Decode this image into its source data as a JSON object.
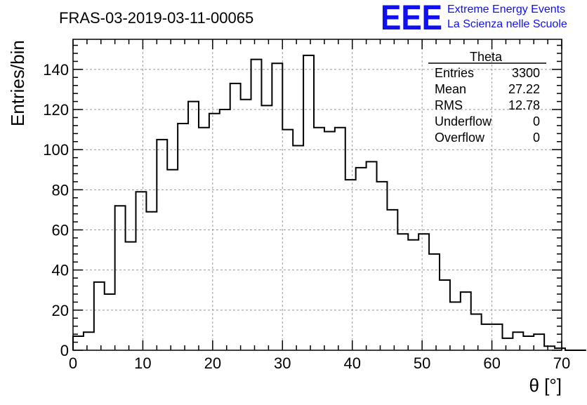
{
  "chart_data": {
    "type": "bar",
    "title": "FRAS-03-2019-03-11-00065",
    "xlabel": "θ [°]",
    "ylabel": "Entries/bin",
    "xlim": [
      0,
      70
    ],
    "ylim": [
      0,
      155
    ],
    "bin_width": 1.5,
    "x_ticks": [
      0,
      10,
      20,
      30,
      40,
      50,
      60,
      70
    ],
    "y_ticks": [
      0,
      20,
      40,
      60,
      80,
      100,
      120,
      140
    ],
    "grid": true,
    "values": [
      7,
      9,
      34,
      28,
      72,
      54,
      79,
      69,
      105,
      90,
      113,
      124,
      111,
      118,
      120,
      133,
      125,
      145,
      122,
      143,
      110,
      102,
      147,
      111,
      109,
      111,
      85,
      91,
      94,
      84,
      70,
      58,
      55,
      58,
      48,
      35,
      24,
      29,
      18,
      13,
      13,
      6,
      9,
      7,
      8,
      2,
      1,
      0,
      0
    ],
    "stats_box": {
      "title": "Theta",
      "rows": [
        {
          "label": "Entries",
          "value": "3300"
        },
        {
          "label": "Mean",
          "value": "27.22"
        },
        {
          "label": "RMS",
          "value": "12.78"
        },
        {
          "label": "Underflow",
          "value": "0"
        },
        {
          "label": "Overflow",
          "value": "0"
        }
      ]
    },
    "logo": {
      "mark": "EEE",
      "line1": "Extreme Energy Events",
      "line2": "La Scienza nelle Scuole",
      "color": "#1010ee"
    }
  }
}
